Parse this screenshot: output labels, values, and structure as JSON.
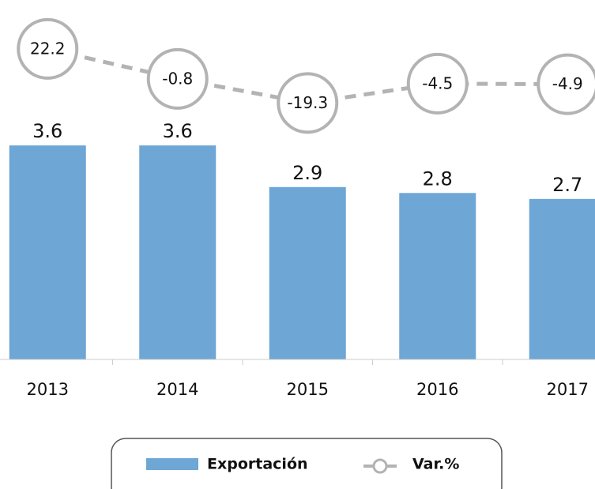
{
  "chart_data": {
    "type": "bar-line",
    "categories": [
      "2013",
      "2014",
      "2015",
      "2016",
      "2017"
    ],
    "series": [
      {
        "name": "Exportación",
        "type": "bar",
        "color": "#6ea6d6",
        "values": [
          3.6,
          3.6,
          2.9,
          2.8,
          2.7
        ]
      },
      {
        "name": "Var.%",
        "type": "line",
        "axis": "y2",
        "color": "#b3b3b3",
        "values": [
          22.2,
          -0.8,
          -19.3,
          -4.5,
          -4.9
        ]
      }
    ],
    "ylim": [
      0,
      4
    ],
    "y2lim": [
      -30,
      30
    ],
    "legend": "bottom"
  }
}
